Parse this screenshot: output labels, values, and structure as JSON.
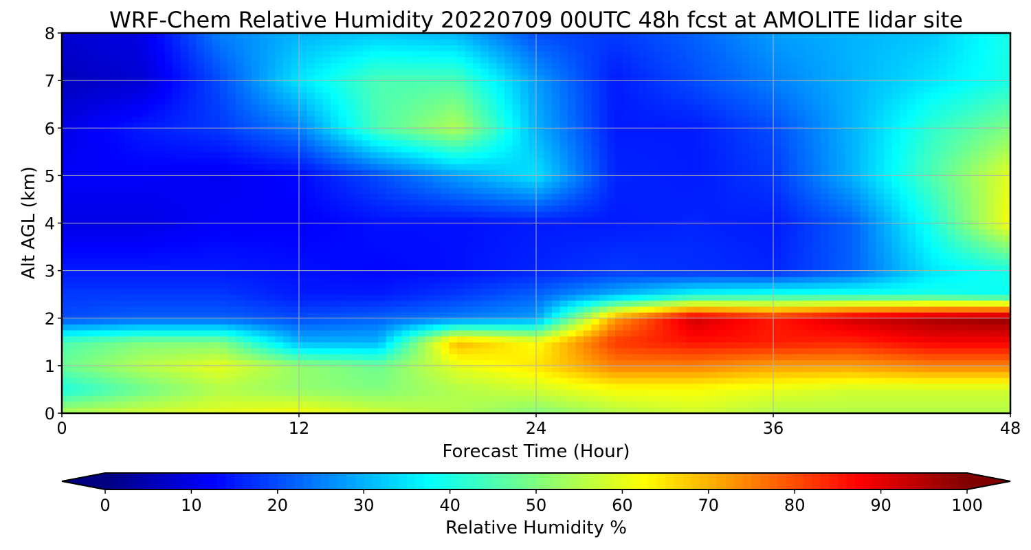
{
  "chart_data": {
    "type": "heatmap",
    "title": "WRF-Chem Relative Humidity 20220709 00UTC 48h fcst at AMOLITE lidar site",
    "xlabel": "Forecast Time (Hour)",
    "ylabel": "Alt AGL (km)",
    "xlim": [
      0,
      48
    ],
    "ylim": [
      0,
      8
    ],
    "x_ticks": [
      0,
      12,
      24,
      36,
      48
    ],
    "y_ticks": [
      0,
      1,
      2,
      3,
      4,
      5,
      6,
      7,
      8
    ],
    "grid": true,
    "colormap": "jet",
    "z_label": "Relative Humidity %",
    "zlim": [
      0,
      100
    ],
    "colorbar_ticks": [
      0,
      10,
      20,
      30,
      40,
      50,
      60,
      70,
      80,
      90,
      100
    ],
    "colorbar_extend": "both",
    "colorbar_placement": "bottom",
    "x": [
      0,
      4,
      8,
      12,
      16,
      20,
      24,
      28,
      32,
      36,
      40,
      44,
      48
    ],
    "y": [
      0,
      0.5,
      1,
      1.5,
      2,
      2.5,
      3,
      4,
      5,
      6,
      7,
      8
    ],
    "z": [
      [
        55,
        58,
        60,
        62,
        58,
        55,
        50,
        55,
        58,
        55,
        55,
        55,
        55
      ],
      [
        40,
        48,
        55,
        52,
        50,
        55,
        58,
        62,
        62,
        60,
        58,
        58,
        58
      ],
      [
        48,
        55,
        60,
        52,
        48,
        60,
        65,
        75,
        75,
        72,
        72,
        75,
        75
      ],
      [
        45,
        50,
        50,
        30,
        30,
        70,
        62,
        82,
        86,
        85,
        84,
        88,
        88
      ],
      [
        20,
        22,
        22,
        20,
        22,
        25,
        28,
        72,
        92,
        85,
        92,
        96,
        98
      ],
      [
        18,
        18,
        18,
        15,
        15,
        18,
        22,
        30,
        38,
        40,
        40,
        40,
        38
      ],
      [
        15,
        15,
        15,
        14,
        13,
        14,
        16,
        18,
        17,
        16,
        22,
        35,
        40
      ],
      [
        10,
        10,
        12,
        12,
        14,
        14,
        15,
        15,
        16,
        15,
        22,
        40,
        62
      ],
      [
        12,
        12,
        11,
        13,
        20,
        28,
        35,
        16,
        15,
        18,
        30,
        45,
        60
      ],
      [
        10,
        15,
        18,
        25,
        45,
        55,
        30,
        15,
        15,
        20,
        30,
        42,
        50
      ],
      [
        6,
        8,
        20,
        35,
        45,
        45,
        28,
        15,
        20,
        25,
        30,
        35,
        40
      ],
      [
        8,
        10,
        25,
        30,
        32,
        30,
        20,
        18,
        22,
        28,
        30,
        32,
        40
      ]
    ]
  }
}
